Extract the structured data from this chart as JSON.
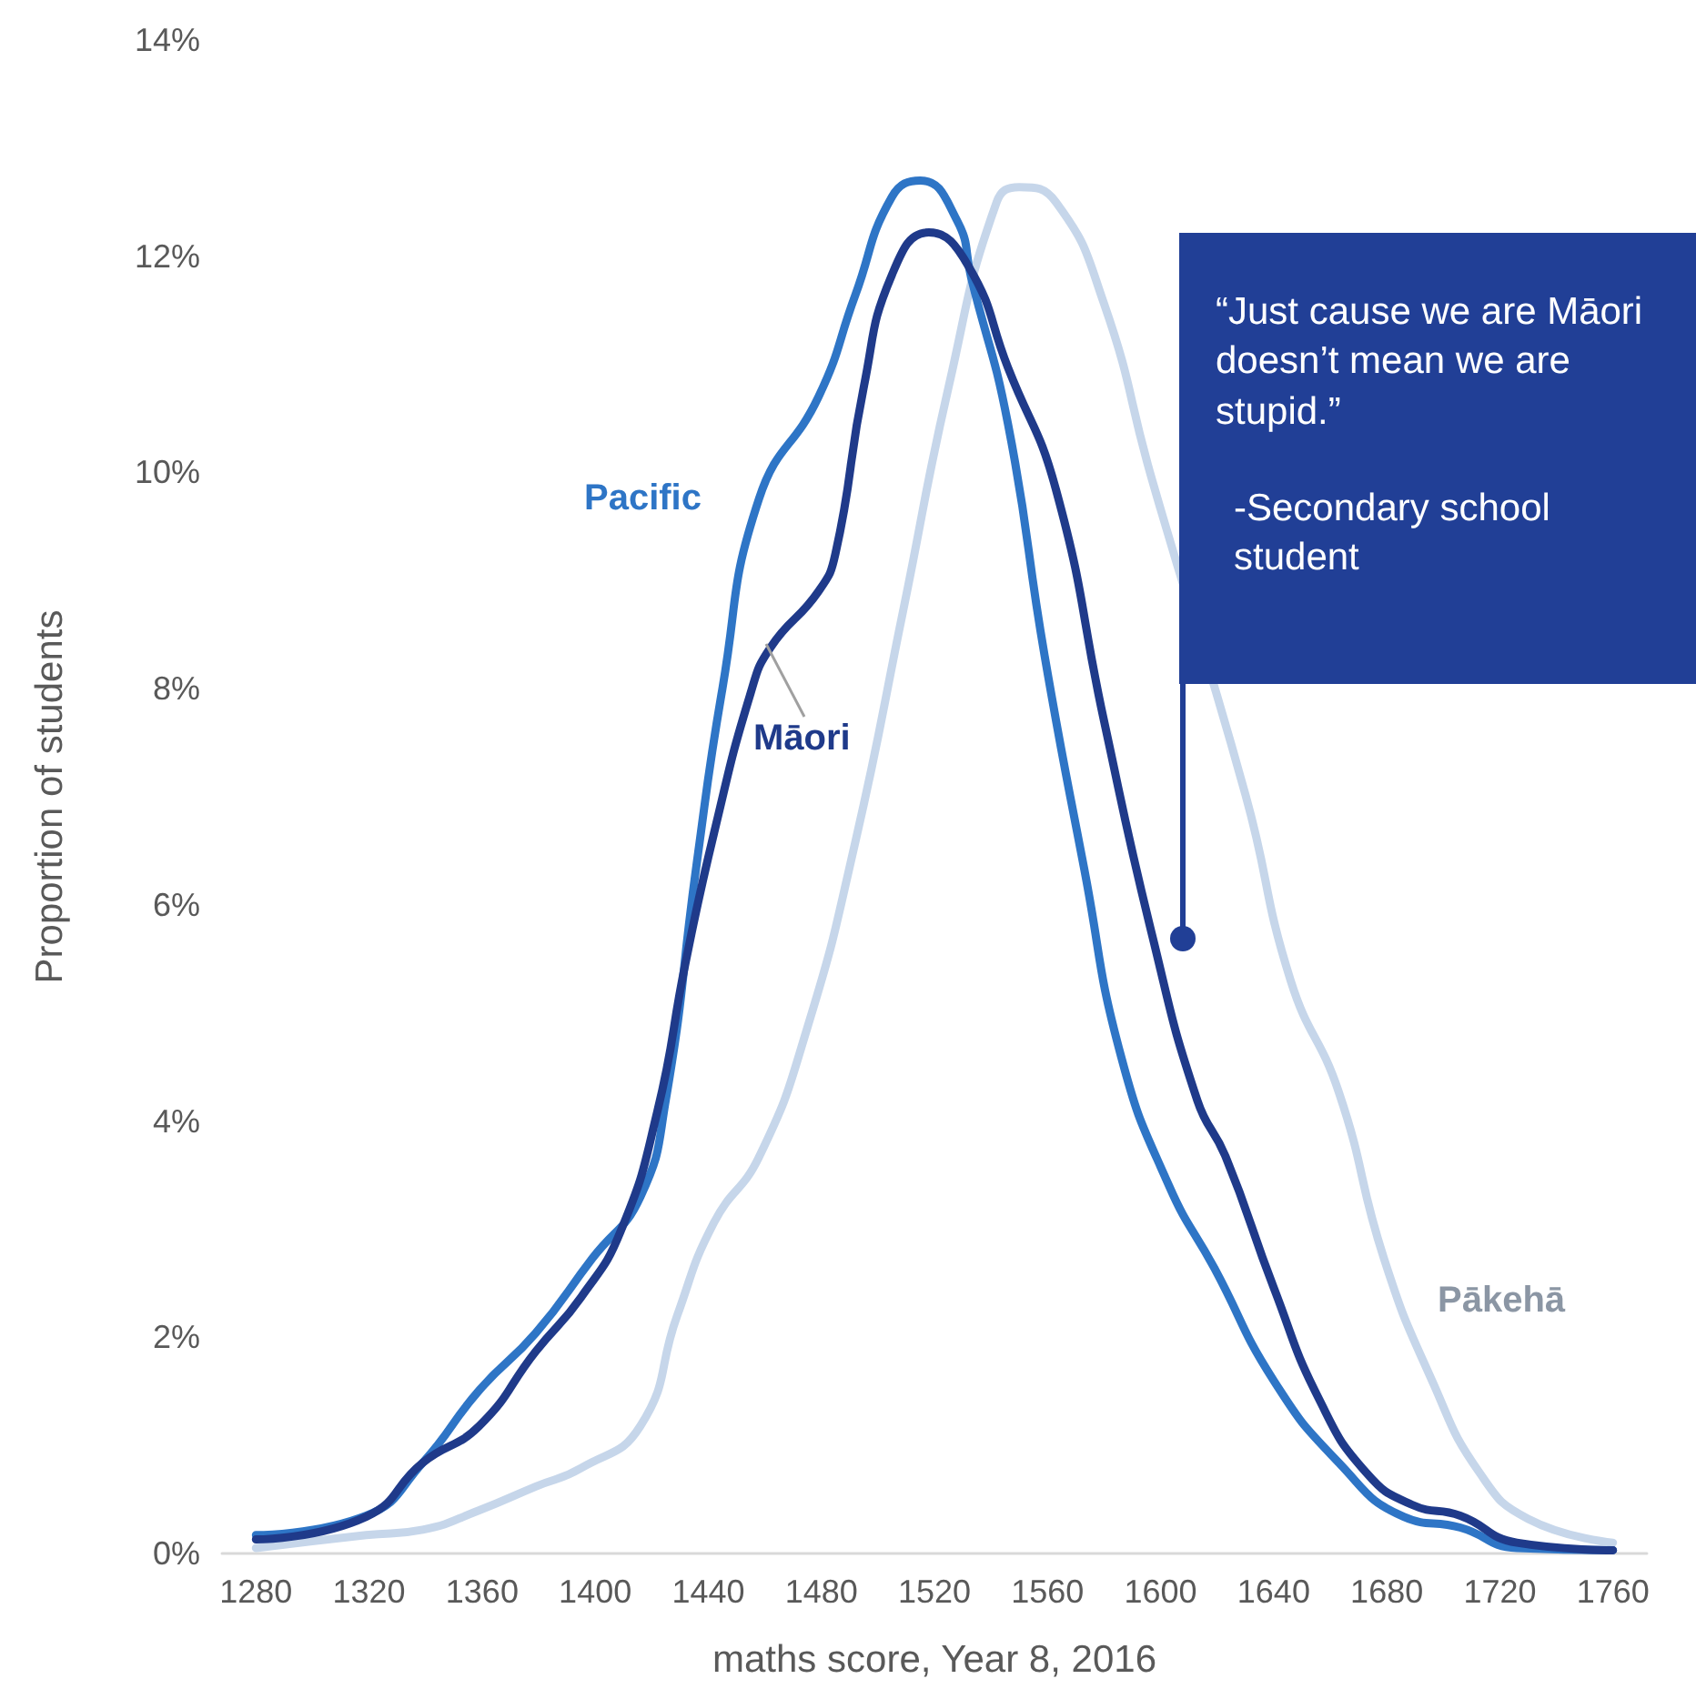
{
  "chart_data": {
    "type": "line",
    "xlabel": "maths score, Year 8, 2016",
    "ylabel": "Proportion of students",
    "annotations": [
      "“Just cause we are Māori doesn’t mean we are stupid.”",
      "-Secondary school student"
    ],
    "xlim": [
      1268,
      1772
    ],
    "xticks": [
      1280,
      1320,
      1360,
      1400,
      1440,
      1480,
      1520,
      1560,
      1600,
      1640,
      1680,
      1720,
      1760
    ],
    "ylim": [
      0,
      14
    ],
    "yticks": [
      {
        "value": 0,
        "label": "0%"
      },
      {
        "value": 2,
        "label": "2%"
      },
      {
        "value": 4,
        "label": "4%"
      },
      {
        "value": 6,
        "label": "6%"
      },
      {
        "value": 8,
        "label": "8%"
      },
      {
        "value": 10,
        "label": "10%"
      },
      {
        "value": 12,
        "label": "12%"
      },
      {
        "value": 14,
        "label": "14%"
      }
    ],
    "grid": false,
    "legend": false,
    "marker": "none",
    "line_style": "solid",
    "series": [
      {
        "name": "Pākehā",
        "color": "#c6d6ea",
        "x": [
          1280,
          1319,
          1339,
          1359,
          1379,
          1395,
          1416,
          1429,
          1442,
          1458,
          1475,
          1492,
          1509,
          1525,
          1542,
          1550,
          1563,
          1580,
          1597,
          1613,
          1630,
          1646,
          1663,
          1679,
          1696,
          1713,
          1730,
          1760
        ],
        "values": [
          0.05,
          0.17,
          0.22,
          0.4,
          0.62,
          0.79,
          1.18,
          2.2,
          3.06,
          3.67,
          4.86,
          6.58,
          8.73,
          10.79,
          12.5,
          12.64,
          12.5,
          11.56,
          9.93,
          null,
          7.02,
          5.3,
          4.27,
          2.73,
          1.6,
          0.74,
          0.32,
          0.1
        ]
      },
      {
        "name": "Pacific",
        "color": "#2e75c6",
        "x": [
          1280,
          1319,
          1339,
          1359,
          1379,
          1399,
          1416,
          1425,
          1436,
          1445,
          1458,
          1479,
          1492,
          1505,
          1515,
          1528,
          1533,
          1546,
          1559,
          1573,
          1586,
          1603,
          1619,
          1640,
          1663,
          1686,
          1706,
          1726,
          1760
        ],
        "values": [
          0.17,
          0.35,
          0.84,
          1.51,
          2.04,
          2.73,
          3.3,
          4.2,
          6.4,
          8.0,
          9.76,
          10.7,
          11.64,
          12.55,
          12.7,
          12.33,
          11.8,
          10.45,
          8.3,
          6.33,
          4.6,
          3.4,
          2.64,
          1.6,
          0.84,
          0.34,
          0.24,
          0.05,
          0.03
        ]
      },
      {
        "name": "Māori",
        "color": "#1f3a8a",
        "x": [
          1280,
          1319,
          1339,
          1359,
          1379,
          1395,
          1409,
          1422,
          1432,
          1442,
          1455,
          1462,
          1479,
          1485,
          1495,
          1505,
          1518,
          1532,
          1546,
          1563,
          1580,
          1597,
          1613,
          1623,
          1640,
          1656,
          1673,
          1689,
          1706,
          1726,
          1760
        ],
        "values": [
          0.13,
          0.34,
          0.84,
          1.18,
          1.87,
          2.37,
          2.98,
          4.09,
          5.47,
          6.66,
          7.96,
          8.38,
          8.9,
          9.25,
          10.79,
          11.83,
          12.22,
          11.91,
          10.97,
          9.84,
          7.7,
          5.72,
          4.19,
          3.67,
          2.46,
          1.43,
          0.74,
          0.45,
          0.35,
          0.1,
          0.03
        ]
      }
    ]
  }
}
